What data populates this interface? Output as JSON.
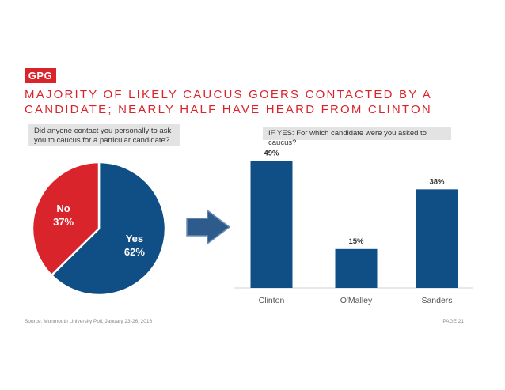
{
  "logo": "GPG",
  "title": "MAJORITY OF LIKELY CAUCUS GOERS CONTACTED BY A CANDIDATE; NEARLY HALF HAVE HEARD FROM CLINTON",
  "question_left": "Did anyone contact you personally to ask you to caucus for a particular candidate?",
  "question_right": "IF YES: For which candidate were you asked to caucus?",
  "footer": {
    "source": "Source: Monmouth University Poll, January 23-26, 2016",
    "page": "PAGE 21"
  },
  "colors": {
    "red": "#d9242c",
    "blue": "#0f4f86",
    "arrow": "#2d5c8c"
  },
  "arrow_icon": "right-arrow-icon",
  "chart_data": [
    {
      "type": "pie",
      "slices": [
        {
          "name": "Yes",
          "value": 62,
          "label": "62%",
          "color": "#0f4f86"
        },
        {
          "name": "No",
          "value": 37,
          "label": "37%",
          "color": "#d9242c"
        }
      ]
    },
    {
      "type": "bar",
      "categories": [
        "Clinton",
        "O'Malley",
        "Sanders"
      ],
      "values": [
        49,
        15,
        38
      ],
      "value_labels": [
        "49%",
        "15%",
        "38%"
      ],
      "ylim": [
        0,
        50
      ],
      "color": "#0f4f86",
      "grid": false
    }
  ]
}
